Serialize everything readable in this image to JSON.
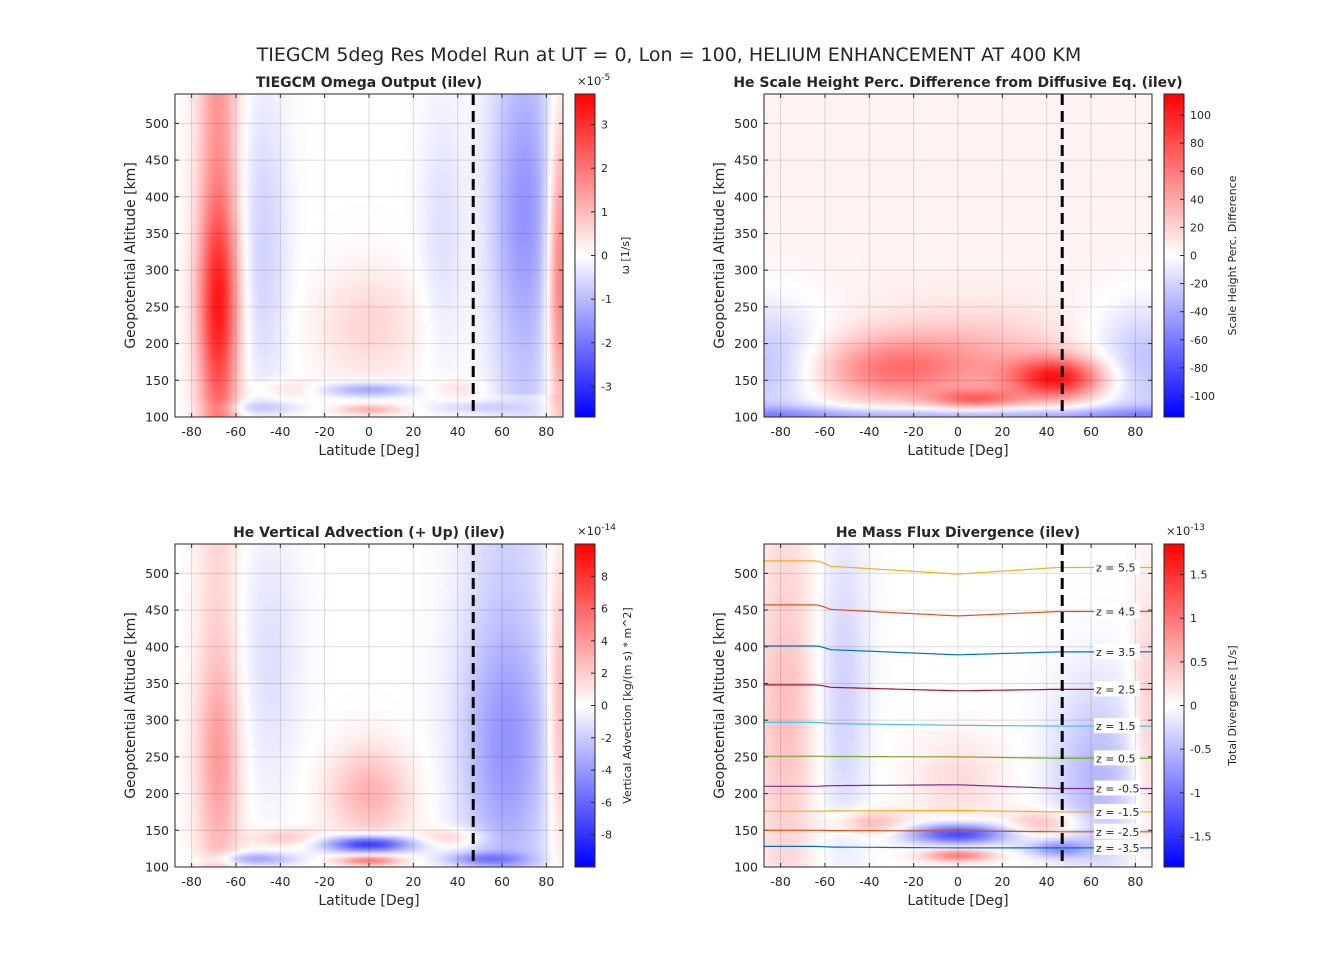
{
  "figure": {
    "suptitle": "TIEGCM 5deg Res Model Run at UT = 0, Lon = 100, HELIUM ENHANCEMENT AT 400 KM"
  },
  "colors": {
    "colormap_low": "#0000ff",
    "colormap_mid": "#ffffff",
    "colormap_high": "#ff0000",
    "dashed_line": "#000000"
  },
  "chart_data": [
    {
      "type": "heatmap",
      "title": "TIEGCM Omega Output (ilev)",
      "xlabel": "Latitude [Deg]",
      "ylabel": "Geopotential Altitude [km]",
      "xlim": [
        -87.5,
        87.5
      ],
      "ylim": [
        100,
        540
      ],
      "xticks": [
        -80,
        -60,
        -40,
        -20,
        0,
        20,
        40,
        60,
        80
      ],
      "yticks": [
        100,
        150,
        200,
        250,
        300,
        350,
        400,
        450,
        500
      ],
      "grid": true,
      "vertical_line_lat": 47,
      "colorbar": {
        "label": "ω [1/s]",
        "exponent_base": "×10",
        "exponent": "-5",
        "clim": [
          -3.7,
          3.7
        ],
        "ticks": [
          -3,
          -2,
          -1,
          0,
          1,
          2,
          3
        ]
      },
      "field_features": [
        {
          "lat": -68,
          "alt": 250,
          "value": 3.0,
          "note": "strong positive column"
        },
        {
          "lat": 70,
          "alt": 380,
          "value": -1.4,
          "note": "negative column"
        },
        {
          "lat": 0,
          "alt": 137,
          "value": -1.5,
          "note": "negative band"
        },
        {
          "lat": 0,
          "alt": 110,
          "value": 1.2,
          "note": "positive near base"
        },
        {
          "lat": 0,
          "alt": 220,
          "value": 0.5,
          "note": "weak positive"
        }
      ]
    },
    {
      "type": "heatmap",
      "title": "He Scale Height Perc. Difference from Diffusive Eq. (ilev)",
      "xlabel": "Latitude [Deg]",
      "ylabel": "Geopotential Altitude [km]",
      "xlim": [
        -87.5,
        87.5
      ],
      "ylim": [
        100,
        540
      ],
      "xticks": [
        -80,
        -60,
        -40,
        -20,
        0,
        20,
        40,
        60,
        80
      ],
      "yticks": [
        100,
        150,
        200,
        250,
        300,
        350,
        400,
        450,
        500
      ],
      "grid": true,
      "vertical_line_lat": 47,
      "colorbar": {
        "label": "Scale Height Perc. Difference",
        "clim": [
          -115,
          115
        ],
        "ticks": [
          -100,
          -80,
          -60,
          -40,
          -20,
          0,
          20,
          40,
          60,
          80,
          100
        ]
      },
      "field_features": [
        {
          "lat": 45,
          "alt": 155,
          "value": 90,
          "note": "peak enhancement"
        },
        {
          "lat": -35,
          "alt": 165,
          "value": 40,
          "note": "southern maximum"
        },
        {
          "lat": 5,
          "alt": 125,
          "value": 50,
          "note": "low-altitude maximum"
        },
        {
          "lat": 0,
          "alt": 102,
          "value": -40,
          "note": "negative base layer"
        }
      ]
    },
    {
      "type": "heatmap",
      "title": "He Vertical Advection (+ Up) (ilev)",
      "xlabel": "Latitude [Deg]",
      "ylabel": "Geopotential Altitude [km]",
      "xlim": [
        -87.5,
        87.5
      ],
      "ylim": [
        100,
        540
      ],
      "xticks": [
        -80,
        -60,
        -40,
        -20,
        0,
        20,
        40,
        60,
        80
      ],
      "yticks": [
        100,
        150,
        200,
        250,
        300,
        350,
        400,
        450,
        500
      ],
      "grid": true,
      "vertical_line_lat": 47,
      "colorbar": {
        "label": "Vertical Advection [kg/(m s) * m^2]",
        "exponent_base": "×10",
        "exponent": "-14",
        "clim": [
          -10,
          10
        ],
        "ticks": [
          -8,
          -6,
          -4,
          -2,
          0,
          2,
          4,
          6,
          8
        ]
      },
      "field_features": [
        {
          "lat": -68,
          "alt": 250,
          "value": 4,
          "note": "positive column"
        },
        {
          "lat": 60,
          "alt": 280,
          "value": -4,
          "note": "negative column"
        },
        {
          "lat": 0,
          "alt": 130,
          "value": -9,
          "note": "strong negative band"
        },
        {
          "lat": 0,
          "alt": 109,
          "value": 5,
          "note": "positive near base"
        },
        {
          "lat": 0,
          "alt": 200,
          "value": 3,
          "note": "positive core"
        }
      ]
    },
    {
      "type": "heatmap",
      "title": "He Mass Flux Divergence (ilev)",
      "xlabel": "Latitude [Deg]",
      "ylabel": "Geopotential Altitude [km]",
      "xlim": [
        -87.5,
        87.5
      ],
      "ylim": [
        100,
        540
      ],
      "xticks": [
        -80,
        -60,
        -40,
        -20,
        0,
        20,
        40,
        60,
        80
      ],
      "yticks": [
        100,
        150,
        200,
        250,
        300,
        350,
        400,
        450,
        500
      ],
      "grid": true,
      "vertical_line_lat": 47,
      "colorbar": {
        "label": "Total Divergence [1/s]",
        "exponent_base": "×10",
        "exponent": "-13",
        "clim": [
          -1.85,
          1.85
        ],
        "ticks": [
          -1.5,
          -1,
          -0.5,
          0,
          0.5,
          1,
          1.5
        ]
      },
      "field_features": [
        {
          "lat": 0,
          "alt": 145,
          "value": -1.4,
          "note": "negative band"
        },
        {
          "lat": 0,
          "alt": 115,
          "value": 0.9,
          "note": "positive near base"
        },
        {
          "lat": -75,
          "alt": 300,
          "value": 0.5,
          "note": "positive column"
        }
      ],
      "z_contours": [
        {
          "label": "z = 5.5",
          "color": "#edb120",
          "alt_south": 517,
          "alt_mid": 499,
          "alt_north": 508
        },
        {
          "label": "z = 4.5",
          "color": "#d95319",
          "alt_south": 457,
          "alt_mid": 442,
          "alt_north": 448
        },
        {
          "label": "z = 3.5",
          "color": "#0072bd",
          "alt_south": 401,
          "alt_mid": 389,
          "alt_north": 393
        },
        {
          "label": "z = 2.5",
          "color": "#a2142f",
          "alt_south": 348,
          "alt_mid": 340,
          "alt_north": 342
        },
        {
          "label": "z = 1.5",
          "color": "#4dbeee",
          "alt_south": 297,
          "alt_mid": 293,
          "alt_north": 292
        },
        {
          "label": "z = 0.5",
          "color": "#77ac30",
          "alt_south": 251,
          "alt_mid": 250,
          "alt_north": 248
        },
        {
          "label": "z = -0.5",
          "color": "#7e2f8e",
          "alt_south": 210,
          "alt_mid": 212,
          "alt_north": 207
        },
        {
          "label": "z = -1.5",
          "color": "#edb120",
          "alt_south": 176,
          "alt_mid": 177,
          "alt_north": 175
        },
        {
          "label": "z = -2.5",
          "color": "#d95319",
          "alt_south": 150,
          "alt_mid": 149,
          "alt_north": 148
        },
        {
          "label": "z = -3.5",
          "color": "#0072bd",
          "alt_south": 128,
          "alt_mid": 126,
          "alt_north": 126
        }
      ]
    }
  ]
}
